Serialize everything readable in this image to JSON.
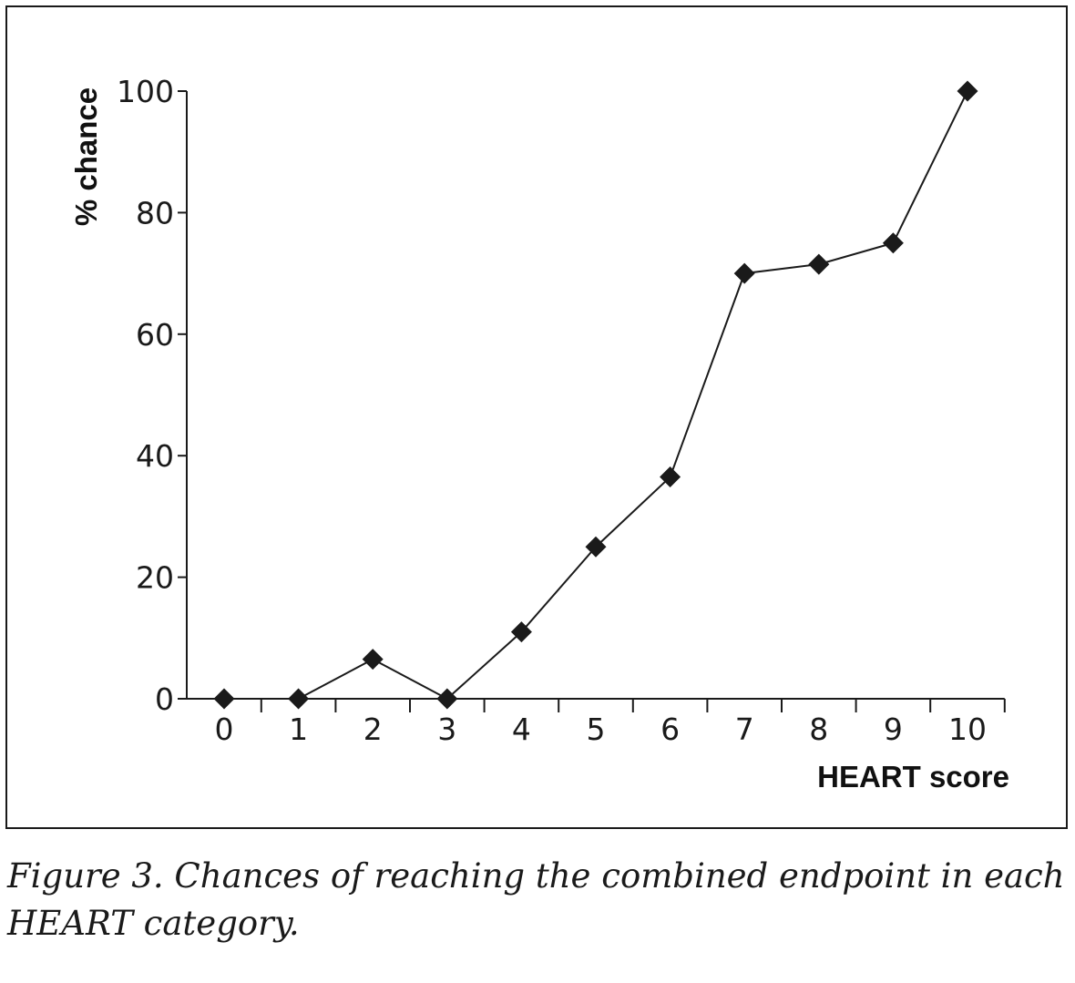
{
  "chart_data": {
    "type": "line",
    "x": [
      0,
      1,
      2,
      3,
      4,
      5,
      6,
      7,
      8,
      9,
      10
    ],
    "series": [
      {
        "values": [
          0,
          0,
          6.5,
          0,
          11,
          25,
          36.5,
          70,
          71.5,
          75,
          100
        ]
      }
    ],
    "xlabel": "HEART score",
    "ylabel": "% chance",
    "xticks": [
      "0",
      "1",
      "2",
      "3",
      "4",
      "5",
      "6",
      "7",
      "8",
      "9",
      "10"
    ],
    "yticks": [
      "0",
      "20",
      "40",
      "60",
      "80",
      "100"
    ],
    "ylim": [
      0,
      100
    ],
    "marker": "diamond",
    "grid": false,
    "legend": "none",
    "colors": {
      "line": "#1a1a1a",
      "marker": "#1a1a1a"
    }
  },
  "caption": {
    "line1": "Figure 3. Chances of reaching the combined endpoint in each",
    "line2": "HEART category."
  }
}
